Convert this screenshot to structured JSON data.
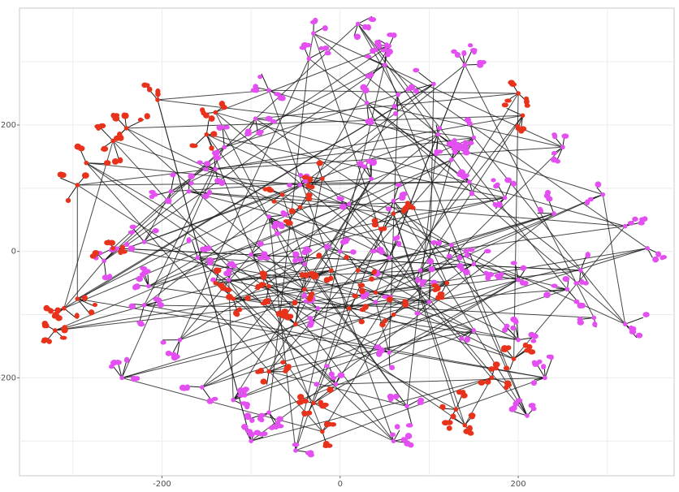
{
  "chart_data": {
    "type": "scatter",
    "subtype": "network-tree",
    "title": "",
    "xlabel": "",
    "ylabel": "",
    "xlim": [
      -360,
      375
    ],
    "ylim": [
      -355,
      385
    ],
    "x_ticks": [
      -200,
      0,
      200
    ],
    "y_ticks": [
      -200,
      0,
      200
    ],
    "x_tick_labels": [
      "-200",
      "0",
      "200"
    ],
    "y_tick_labels": [
      "-200",
      "0",
      "200"
    ],
    "grid": true,
    "legend": "none",
    "colors": {
      "edge": "#1a1a1a",
      "series_magenta": "#e34ff0",
      "series_red": "#e8321b",
      "grid": "#ececec",
      "frame": "#c8c8c8"
    },
    "series": [
      {
        "color_key": "series_magenta",
        "clusters": [
          {
            "x": -30,
            "y": 345
          },
          {
            "x": 20,
            "y": 360
          },
          {
            "x": 55,
            "y": 325
          },
          {
            "x": -35,
            "y": 305
          },
          {
            "x": 50,
            "y": 295
          },
          {
            "x": 140,
            "y": 295
          },
          {
            "x": 105,
            "y": 265
          },
          {
            "x": 65,
            "y": 248
          },
          {
            "x": 30,
            "y": 235
          },
          {
            "x": -80,
            "y": 255
          },
          {
            "x": -95,
            "y": 210
          },
          {
            "x": 110,
            "y": 185
          },
          {
            "x": 150,
            "y": 180
          },
          {
            "x": 125,
            "y": 145
          },
          {
            "x": 250,
            "y": 165
          },
          {
            "x": -130,
            "y": 165
          },
          {
            "x": -140,
            "y": 130
          },
          {
            "x": -190,
            "y": 95
          },
          {
            "x": -170,
            "y": 95
          },
          {
            "x": -80,
            "y": 55
          },
          {
            "x": -45,
            "y": 105
          },
          {
            "x": 35,
            "y": 115
          },
          {
            "x": 60,
            "y": 80
          },
          {
            "x": 10,
            "y": 75
          },
          {
            "x": 145,
            "y": 110
          },
          {
            "x": 185,
            "y": 85
          },
          {
            "x": 240,
            "y": 60
          },
          {
            "x": 295,
            "y": 90
          },
          {
            "x": 320,
            "y": 40
          },
          {
            "x": 345,
            "y": 5
          },
          {
            "x": -220,
            "y": 15
          },
          {
            "x": -265,
            "y": -15
          },
          {
            "x": -215,
            "y": -55
          },
          {
            "x": -160,
            "y": -10
          },
          {
            "x": -125,
            "y": -45
          },
          {
            "x": -100,
            "y": -5
          },
          {
            "x": -40,
            "y": -20
          },
          {
            "x": 0,
            "y": 0
          },
          {
            "x": 55,
            "y": -10
          },
          {
            "x": 90,
            "y": -30
          },
          {
            "x": 125,
            "y": 10
          },
          {
            "x": 150,
            "y": -20
          },
          {
            "x": 200,
            "y": -45
          },
          {
            "x": 255,
            "y": -60
          },
          {
            "x": 270,
            "y": -30
          },
          {
            "x": -220,
            "y": -85
          },
          {
            "x": -180,
            "y": -140
          },
          {
            "x": -245,
            "y": -200
          },
          {
            "x": -155,
            "y": -215
          },
          {
            "x": -120,
            "y": -235
          },
          {
            "x": -80,
            "y": -255
          },
          {
            "x": -5,
            "y": -210
          },
          {
            "x": 55,
            "y": -160
          },
          {
            "x": 75,
            "y": -245
          },
          {
            "x": 100,
            "y": -80
          },
          {
            "x": 150,
            "y": -125
          },
          {
            "x": 200,
            "y": -140
          },
          {
            "x": 230,
            "y": -200
          },
          {
            "x": 285,
            "y": -105
          },
          {
            "x": 320,
            "y": -115
          },
          {
            "x": -50,
            "y": -315
          },
          {
            "x": -100,
            "y": -300
          },
          {
            "x": 60,
            "y": -300
          },
          {
            "x": 210,
            "y": -260
          },
          {
            "x": 40,
            "y": -80
          },
          {
            "x": -25,
            "y": -90
          }
        ]
      },
      {
        "color_key": "series_red",
        "clusters": [
          {
            "x": -205,
            "y": 240
          },
          {
            "x": -240,
            "y": 195
          },
          {
            "x": -255,
            "y": 175
          },
          {
            "x": -285,
            "y": 140
          },
          {
            "x": -295,
            "y": 105
          },
          {
            "x": -150,
            "y": 185
          },
          {
            "x": -140,
            "y": 220
          },
          {
            "x": 200,
            "y": 250
          },
          {
            "x": 205,
            "y": 215
          },
          {
            "x": -65,
            "y": 90
          },
          {
            "x": -20,
            "y": 115
          },
          {
            "x": -45,
            "y": 70
          },
          {
            "x": -255,
            "y": 5
          },
          {
            "x": -140,
            "y": -50
          },
          {
            "x": -120,
            "y": -75
          },
          {
            "x": -80,
            "y": -55
          },
          {
            "x": -40,
            "y": -60
          },
          {
            "x": -10,
            "y": -30
          },
          {
            "x": 20,
            "y": -30
          },
          {
            "x": 40,
            "y": -65
          },
          {
            "x": 60,
            "y": 60
          },
          {
            "x": -310,
            "y": -90
          },
          {
            "x": -320,
            "y": -125
          },
          {
            "x": -295,
            "y": -75
          },
          {
            "x": -50,
            "y": -115
          },
          {
            "x": 10,
            "y": -90
          },
          {
            "x": 60,
            "y": -100
          },
          {
            "x": 120,
            "y": -50
          },
          {
            "x": -80,
            "y": -190
          },
          {
            "x": -30,
            "y": -240
          },
          {
            "x": -20,
            "y": -285
          },
          {
            "x": 170,
            "y": -200
          },
          {
            "x": 195,
            "y": -170
          },
          {
            "x": 130,
            "y": -250
          },
          {
            "x": 140,
            "y": -275
          }
        ]
      }
    ]
  }
}
